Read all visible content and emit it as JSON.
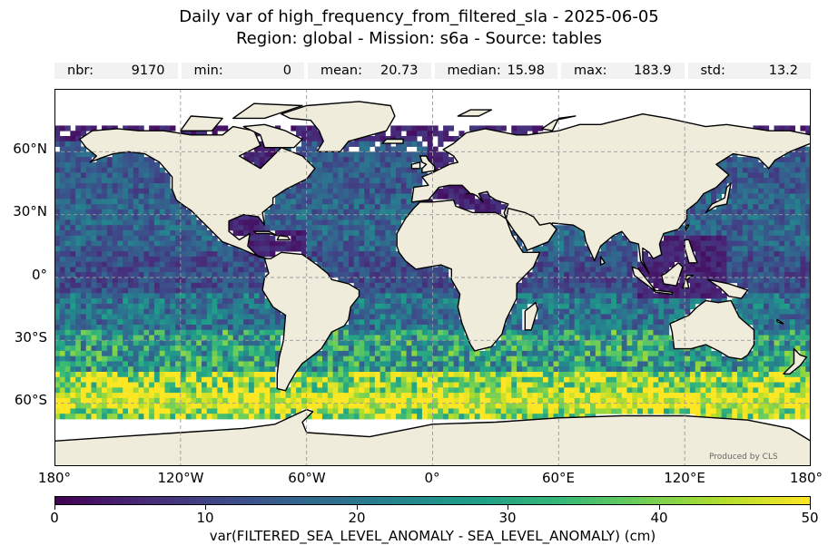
{
  "title_line1": "Daily var of high_frequency_from_filtered_sla - 2025-06-05",
  "title_line2": "Region: global - Mission: s6a - Source: tables",
  "stats": [
    {
      "label": "nbr:",
      "value": "9170"
    },
    {
      "label": "min:",
      "value": "0"
    },
    {
      "label": "mean:",
      "value": "20.73"
    },
    {
      "label": "median:",
      "value": "15.98"
    },
    {
      "label": "max:",
      "value": "183.9"
    },
    {
      "label": "std:",
      "value": "13.2"
    }
  ],
  "credit": "Produced by CLS",
  "lat_labels": [
    "60°N",
    "30°N",
    "0°",
    "30°S",
    "60°S"
  ],
  "lon_labels": [
    "180°",
    "120°W",
    "60°W",
    "0°",
    "60°E",
    "120°E",
    "180°"
  ],
  "colorbar": {
    "ticks": [
      "0",
      "10",
      "20",
      "30",
      "40",
      "50"
    ],
    "label": "var(FILTERED_SEA_LEVEL_ANOMALY - SEA_LEVEL_ANOMALY) (cm)",
    "colormap": "viridis",
    "range": [
      0,
      50
    ]
  },
  "map": {
    "projection": "PlateCarree",
    "extent_lon": [
      -180,
      180
    ],
    "extent_lat": [
      -90,
      90
    ],
    "gridlines": true,
    "land_color": "#efecdc",
    "no_data_color": "#ffffff"
  }
}
